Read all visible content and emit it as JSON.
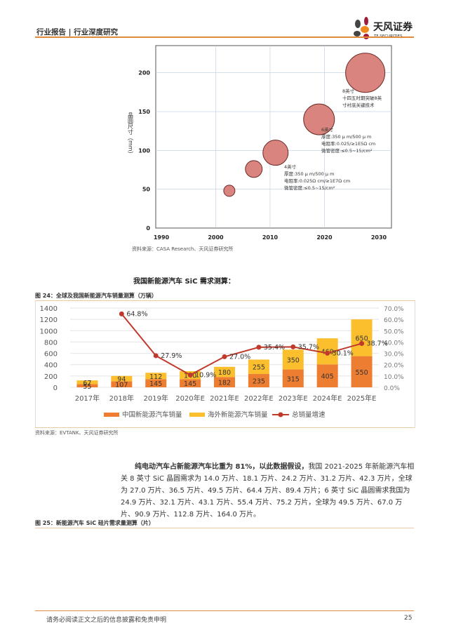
{
  "header": {
    "title": "行业报告 | 行业深度研究",
    "logo_text": "天风证券",
    "logo_sub": "TF SECURITIES"
  },
  "bubble_chart": {
    "ylabel": "晶圆尺寸（mm）",
    "xticks": [
      1990,
      2000,
      2010,
      2020,
      2030
    ],
    "yticks": [
      0,
      50,
      100,
      150,
      200
    ],
    "xlim": [
      1990,
      2030
    ],
    "ylim": [
      0,
      235
    ],
    "points": [
      {
        "x": 2002.5,
        "y": 48,
        "size": 8
      },
      {
        "x": 2007,
        "y": 76,
        "size": 12
      },
      {
        "x": 2011,
        "y": 97,
        "size": 18
      },
      {
        "x": 2019,
        "y": 140,
        "size": 22
      },
      {
        "x": 2027.5,
        "y": 200,
        "size": 28
      }
    ],
    "annotations": [
      {
        "lines": [
          "4英寸",
          "厚度:350 μ m/500 μ m",
          "电阻率:0.025Ω cm/≥1E7Ω cm",
          "微管密度:≤0.5~15/cm²"
        ]
      },
      {
        "lines": [
          "6英寸",
          "厚度:350 μ m/500 μ m",
          "电阻率:0.025/≥1E5Ω cm",
          "微管密度:≤0.5~15/cm²"
        ]
      },
      {
        "lines": [
          "8英寸",
          "十四五时期突破8英",
          "寸衬底关键技术"
        ]
      }
    ],
    "bubble_color": "#d9847e",
    "source": "资料来源：CASA Research、天风证券研究所"
  },
  "section_heading": "我国新能源汽车 SiC 需求测算：",
  "figure24": {
    "caption": "图 24：全球及我国新能源汽车销量测算（万辆）",
    "source": "资料来源：EVTANK、天风证券研究所"
  },
  "chart_data": {
    "type": "bar",
    "stacked": true,
    "categories": [
      "2017年",
      "2018年",
      "2019年",
      "2020年E",
      "2021年E",
      "2022年E",
      "2023年E",
      "2024年E",
      "2025年E"
    ],
    "series": [
      {
        "name": "中国新能源汽车销量",
        "values": [
          55,
          107,
          145,
          145,
          182,
          235,
          315,
          405,
          550
        ],
        "color": "#ed7d31"
      },
      {
        "name": "海外新能源汽车销量",
        "values": [
          67,
          94,
          112,
          140,
          180,
          255,
          350,
          460,
          650
        ],
        "color": "#fbbf2d"
      },
      {
        "name": "总销量增速",
        "type": "line",
        "axis": "right",
        "values": [
          null,
          64.8,
          27.9,
          10.9,
          27.0,
          35.4,
          35.7,
          30.1,
          38.7
        ],
        "color": "#c0392b"
      }
    ],
    "yticks_left": [
      0,
      200,
      400,
      600,
      800,
      1000,
      1200,
      1400
    ],
    "yticks_right": [
      "0.0%",
      "10.0%",
      "20.0%",
      "30.0%",
      "40.0%",
      "50.0%",
      "60.0%",
      "70.0%"
    ],
    "ylim": [
      0,
      1400
    ],
    "ylim_right": [
      0,
      70
    ],
    "legend": "bottom",
    "grid": true
  },
  "paragraph": {
    "bold": "纯电动汽车占新能源汽车比重为 81%，以此数据假设，",
    "text": "我国 2021-2025 年新能源汽车相关 8 英寸 SiC 晶圆需求为 14.0 万片、18.1 万片、24.2 万片、31.2 万片、42.3 万片，全球为 27.0 万片、36.5 万片、49.5 万片、64.4 万片、89.4 万片；6 英寸 SiC 晶圆需求我国为 24.9 万片、32.1 万片、43.1 万片、55.4 万片、75.2 万片，全球为 49.5 万片、67.0 万片、90.9 万片、112.8 万片、164.0 万片。"
  },
  "figure25": {
    "caption": "图 25：新能源汽车 SiC 硅片需求量测算（片）"
  },
  "footer": {
    "disclaimer": "请务必阅读正文之后的信息披露和免责申明",
    "page": "25"
  }
}
